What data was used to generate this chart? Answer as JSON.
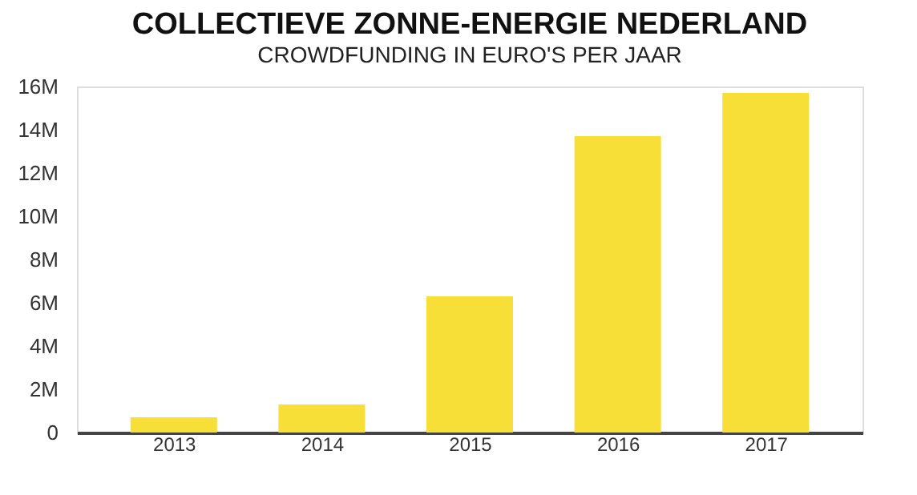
{
  "chart_data": {
    "type": "bar",
    "title": "COLLECTIEVE ZONNE-ENERGIE NEDERLAND",
    "subtitle": "CROWDFUNDING IN EURO'S PER JAAR",
    "categories": [
      "2013",
      "2014",
      "2015",
      "2016",
      "2017"
    ],
    "values": [
      0.7,
      1.3,
      6.3,
      13.7,
      15.7
    ],
    "color": "#f7df37",
    "ylim": [
      0,
      16
    ],
    "yticks": [
      0,
      {
        "value": 2,
        "label": "2M"
      },
      {
        "value": 4,
        "label": "4M"
      },
      {
        "value": 6,
        "label": "6M"
      },
      {
        "value": 8,
        "label": "8M"
      },
      {
        "value": 10,
        "label": "10M"
      },
      {
        "value": 12,
        "label": "12M"
      },
      {
        "value": 14,
        "label": "14M"
      },
      {
        "value": 16,
        "label": "16M"
      }
    ],
    "grid": false
  }
}
